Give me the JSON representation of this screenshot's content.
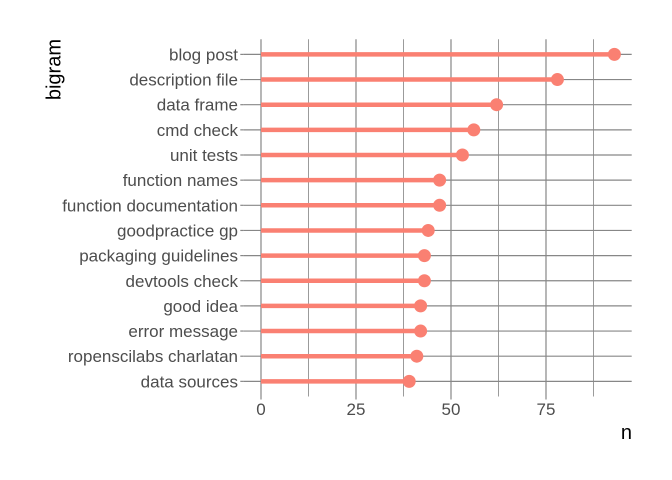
{
  "figure": {
    "background": "#ffffff",
    "colors": {
      "lollipop": "#FA8072",
      "grid_major": "#878787",
      "grid_minor": "#9b9b9b",
      "axis_text": "#4d4d4d",
      "axis_title": "#000000"
    }
  },
  "chart_data": {
    "type": "bar",
    "variant": "lollipop",
    "orientation": "horizontal",
    "title": "",
    "xlabel": "n",
    "ylabel": "bigram",
    "categories": [
      "blog post",
      "description file",
      "data frame",
      "cmd check",
      "unit tests",
      "function names",
      "function documentation",
      "goodpractice gp",
      "packaging guidelines",
      "devtools check",
      "good idea",
      "error message",
      "ropenscilabs charlatan",
      "data sources"
    ],
    "values": [
      93,
      78,
      62,
      56,
      53,
      47,
      47,
      44,
      43,
      43,
      42,
      42,
      41,
      39
    ],
    "x_tick_labels": [
      "0",
      "25",
      "50",
      "75"
    ],
    "x_ticks": [
      0,
      25,
      50,
      75
    ],
    "x_minor_ticks": [
      12.5,
      37.5,
      62.5,
      87.5
    ],
    "xlim": [
      -4.66,
      97.65
    ],
    "grid": true,
    "legend": false
  }
}
